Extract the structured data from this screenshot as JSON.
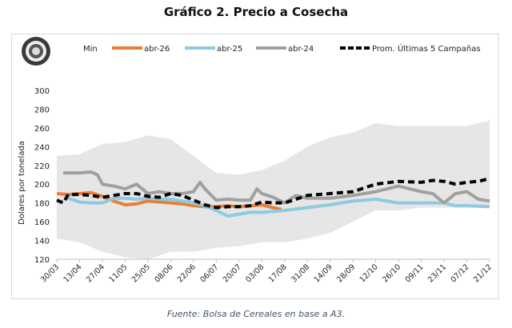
{
  "title": "Gráfico 2. Precio a Cosecha",
  "source": "Fuente: Bolsa de Cereales en base a A3.",
  "chart_data": {
    "type": "line",
    "ylabel": "Dolares por tonelada",
    "ylim": [
      120,
      300
    ],
    "yticks": [
      120,
      140,
      160,
      180,
      200,
      220,
      240,
      260,
      280,
      300
    ],
    "x_unit": "days since 30/03",
    "xlim": [
      0,
      266
    ],
    "xtick_labels": [
      "30/03",
      "13/04",
      "27/04",
      "11/05",
      "25/05",
      "08/06",
      "22/06",
      "06/07",
      "20/07",
      "03/08",
      "17/08",
      "31/08",
      "14/09",
      "28/09",
      "12/10",
      "26/10",
      "09/11",
      "23/11",
      "07/12",
      "21/12"
    ],
    "legend": [
      "Min",
      "abr-26",
      "abr-25",
      "abr-24",
      "Prom. Últimas 5 Campañas"
    ],
    "legend_position": "top",
    "band": {
      "name": "Min",
      "color": "#e6e6e6",
      "x": [
        0,
        14,
        28,
        42,
        56,
        70,
        84,
        98,
        112,
        126,
        140,
        154,
        168,
        182,
        196,
        210,
        224,
        238,
        252,
        266
      ],
      "upper": [
        230,
        232,
        243,
        245,
        252,
        248,
        230,
        212,
        210,
        215,
        225,
        240,
        250,
        255,
        265,
        262,
        262,
        262,
        262,
        268
      ],
      "lower": [
        142,
        138,
        128,
        122,
        120,
        128,
        128,
        132,
        134,
        138,
        138,
        142,
        148,
        160,
        172,
        172,
        175,
        175,
        175,
        175
      ]
    },
    "series": [
      {
        "name": "abr-26",
        "color": "#ed7d31",
        "dashed": false,
        "x": [
          0,
          7,
          14,
          21,
          28,
          35,
          42,
          49,
          56,
          63,
          70,
          77,
          84,
          91,
          98,
          105,
          112,
          119,
          126,
          133,
          138
        ],
        "y": [
          190,
          189,
          190,
          191,
          187,
          182,
          178,
          179,
          182,
          181,
          180,
          179,
          177,
          176,
          176,
          177,
          176,
          177,
          178,
          175,
          173
        ]
      },
      {
        "name": "abr-25",
        "color": "#8ecae0",
        "dashed": false,
        "x": [
          7,
          14,
          21,
          28,
          35,
          42,
          49,
          56,
          63,
          70,
          77,
          84,
          91,
          98,
          105,
          112,
          119,
          126,
          133,
          140,
          154,
          168,
          182,
          196,
          210,
          224,
          238,
          245,
          252,
          266
        ],
        "y": [
          185,
          181,
          180,
          180,
          185,
          185,
          184,
          185,
          184,
          184,
          182,
          180,
          177,
          172,
          166,
          168,
          170,
          170,
          171,
          172,
          175,
          178,
          182,
          184,
          180,
          180,
          180,
          177,
          177,
          176
        ]
      },
      {
        "name": "abr-24",
        "color": "#a0a0a0",
        "dashed": false,
        "x": [
          4,
          14,
          21,
          25,
          28,
          35,
          42,
          49,
          56,
          63,
          70,
          77,
          84,
          88,
          91,
          98,
          105,
          112,
          119,
          123,
          126,
          133,
          140,
          147,
          154,
          168,
          182,
          196,
          210,
          224,
          231,
          238,
          245,
          252,
          259,
          266
        ],
        "y": [
          212,
          212,
          213,
          210,
          200,
          198,
          195,
          200,
          190,
          192,
          190,
          190,
          192,
          202,
          195,
          183,
          184,
          183,
          183,
          195,
          190,
          186,
          180,
          188,
          185,
          185,
          188,
          192,
          198,
          192,
          190,
          180,
          190,
          192,
          184,
          182
        ]
      },
      {
        "name": "Prom. Últimas 5 Campañas",
        "color": "#000000",
        "dashed": true,
        "x": [
          0,
          4,
          7,
          14,
          21,
          28,
          35,
          42,
          49,
          56,
          63,
          70,
          77,
          84,
          91,
          98,
          105,
          112,
          119,
          126,
          133,
          140,
          147,
          154,
          168,
          182,
          189,
          196,
          210,
          224,
          231,
          238,
          245,
          252,
          259,
          266
        ],
        "y": [
          183,
          180,
          189,
          189,
          188,
          186,
          188,
          190,
          190,
          187,
          186,
          190,
          188,
          183,
          178,
          175,
          176,
          176,
          177,
          181,
          180,
          180,
          184,
          188,
          190,
          192,
          196,
          200,
          203,
          202,
          204,
          203,
          200,
          202,
          203,
          206
        ]
      }
    ]
  }
}
